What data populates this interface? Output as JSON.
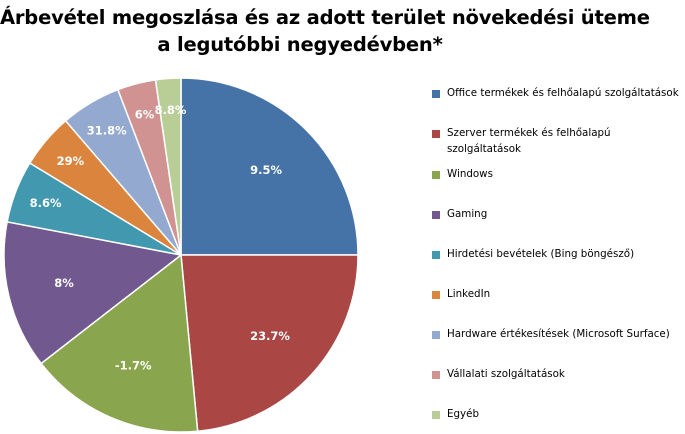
{
  "chart_data": {
    "type": "pie",
    "title_lines": [
      "Árbevétel megoszlása és az adott terület növekedési üteme",
      "a legutóbbi negyedévben*"
    ],
    "slices": [
      {
        "name": "Office termékek és felhőalapú szolgáltatások",
        "share": 0.25,
        "label": "9.5%",
        "color": "#4572A7"
      },
      {
        "name": "Szerver termékek és felhőalapú szolgáltatások",
        "share": 0.235,
        "label": "23.7%",
        "color": "#AA4643"
      },
      {
        "name": "Windows",
        "share": 0.16,
        "label": "-1.7%",
        "color": "#89A54E"
      },
      {
        "name": "Gaming",
        "share": 0.135,
        "label": "8%",
        "color": "#71588F"
      },
      {
        "name": "Hirdetési bevételek (Bing böngésző)",
        "share": 0.057,
        "label": "8.6%",
        "color": "#4198AF"
      },
      {
        "name": "LinkedIn",
        "share": 0.05,
        "label": "29%",
        "color": "#DB843D"
      },
      {
        "name": "Hardware értékesítések (Microsoft Surface)",
        "share": 0.055,
        "label": "31.8%",
        "color": "#93A9CF"
      },
      {
        "name": "Vállalati szolgáltatások",
        "share": 0.035,
        "label": "6%",
        "color": "#D19392"
      },
      {
        "name": "Egyéb",
        "share": 0.023,
        "label": "8.8%",
        "color": "#B9CD96"
      }
    ],
    "legend_position": "right"
  }
}
